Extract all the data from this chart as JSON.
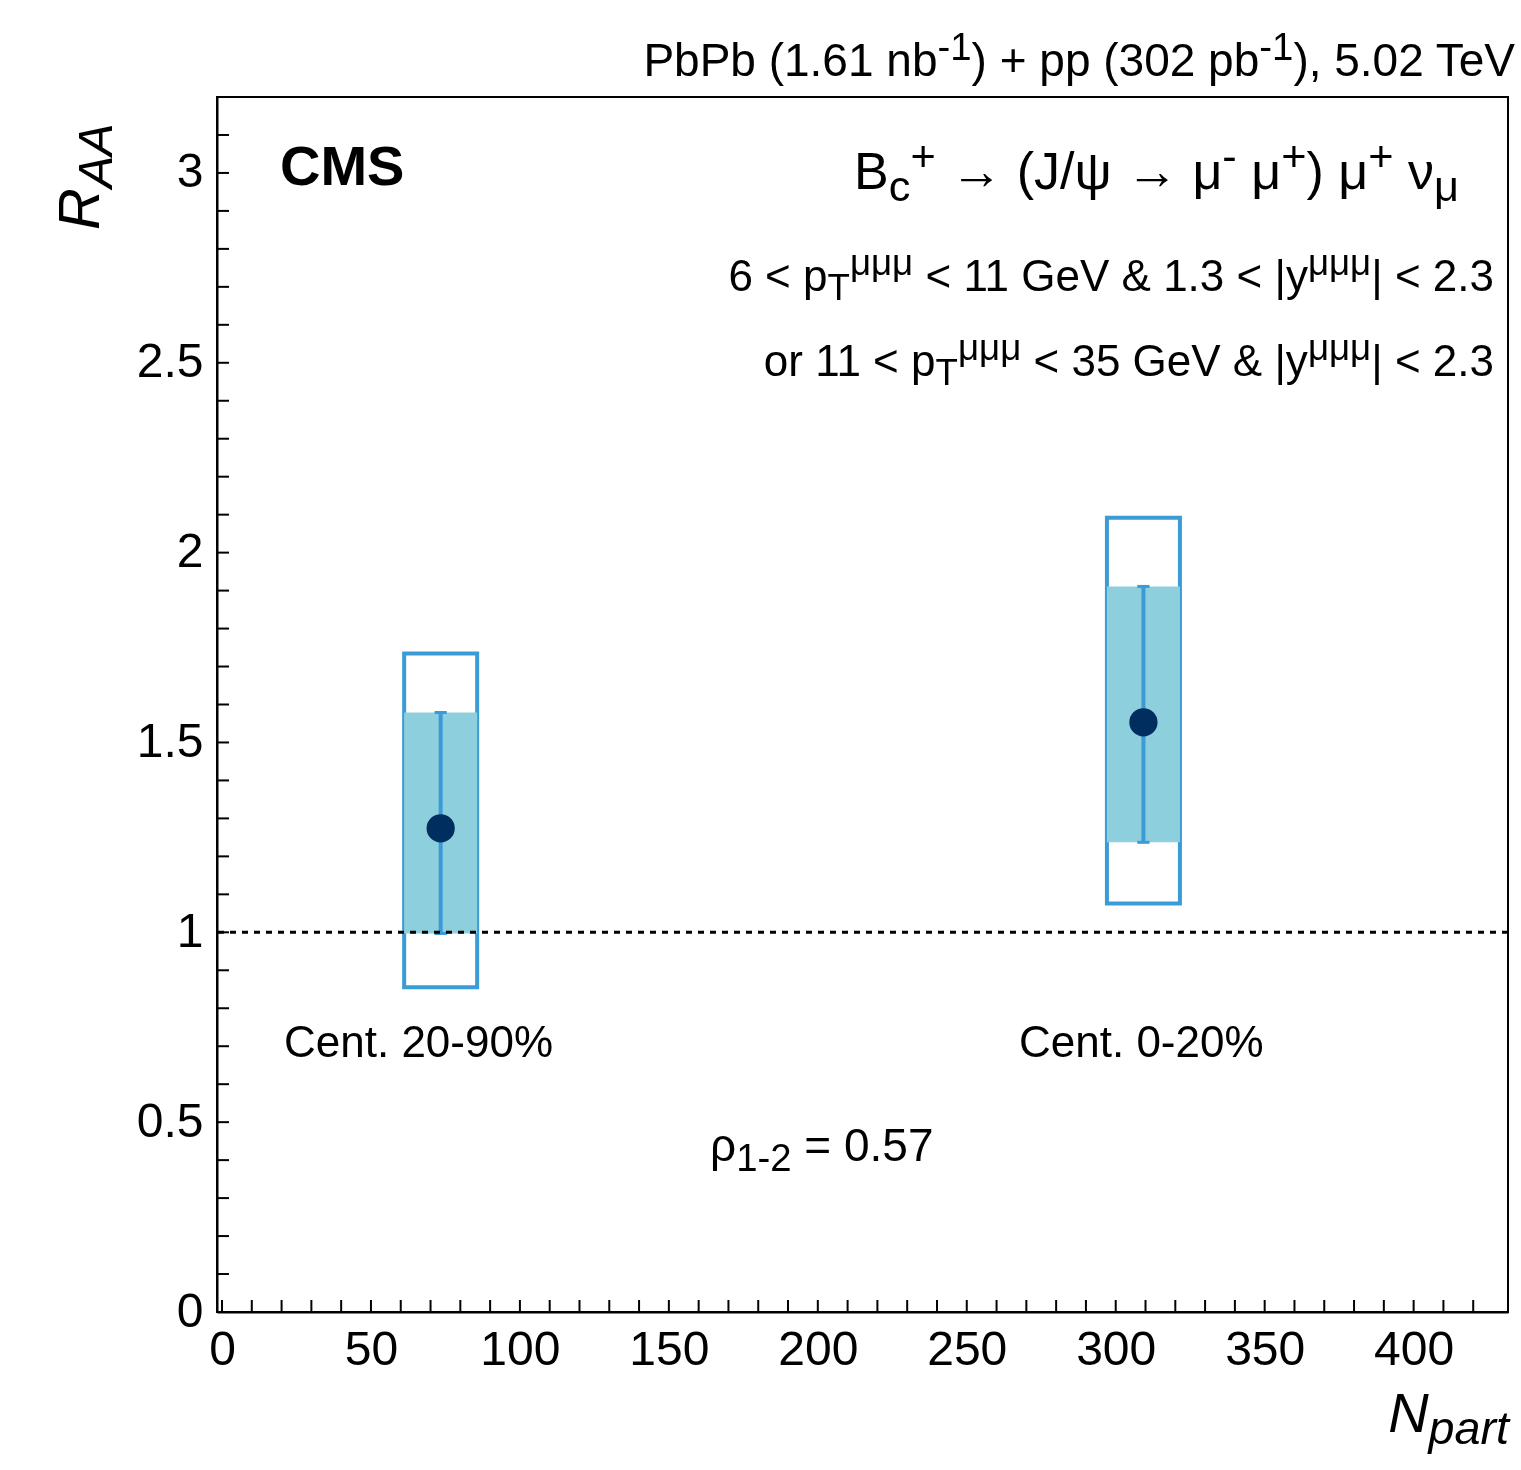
{
  "chart_data": {
    "type": "scatter",
    "title": "PbPb (1.61 nb$^{-1}$) + pp (302 pb$^{-1}$), 5.02 TeV",
    "xlabel": "N$_{part}$",
    "ylabel": "R$_{AA}$",
    "annotations": [
      "CMS",
      "B$_{c}$$^{+}$ → (J/ψ → μ$^{-}$ μ$^{+}$) μ$^{+}$ ν$_{μ}$",
      "6 < p$_{T}$$^{μμμ}$ < 11 GeV & 1.3 < |y$^{μμμ}$| < 2.3",
      "or 11 < p$_{T}$$^{μμμ}$ < 35 GeV & |y$^{μμμ}$| < 2.3",
      "ρ$_{1-2}$ = 0.57",
      "Cent. 20-90%",
      "Cent. 0-20%"
    ],
    "xlim": [
      0,
      430
    ],
    "ylim": [
      0,
      3.2
    ],
    "xticks": [
      0,
      {
        "value": 10,
        "label": null
      },
      {
        "value": 20,
        "label": null
      },
      {
        "value": 30,
        "label": null
      },
      {
        "value": 40,
        "label": null
      },
      50,
      {
        "value": 60,
        "label": null
      },
      {
        "value": 70,
        "label": null
      },
      {
        "value": 80,
        "label": null
      },
      {
        "value": 90,
        "label": null
      },
      100,
      {
        "value": 110,
        "label": null
      },
      {
        "value": 120,
        "label": null
      },
      {
        "value": 130,
        "label": null
      },
      {
        "value": 140,
        "label": null
      },
      150,
      {
        "value": 160,
        "label": null
      },
      {
        "value": 170,
        "label": null
      },
      {
        "value": 180,
        "label": null
      },
      {
        "value": 190,
        "label": null
      },
      200,
      {
        "value": 210,
        "label": null
      },
      {
        "value": 220,
        "label": null
      },
      {
        "value": 230,
        "label": null
      },
      {
        "value": 240,
        "label": null
      },
      250,
      {
        "value": 260,
        "label": null
      },
      {
        "value": 270,
        "label": null
      },
      {
        "value": 280,
        "label": null
      },
      {
        "value": 290,
        "label": null
      },
      300,
      {
        "value": 310,
        "label": null
      },
      {
        "value": 320,
        "label": null
      },
      {
        "value": 330,
        "label": null
      },
      {
        "value": 340,
        "label": null
      },
      350,
      {
        "value": 360,
        "label": null
      },
      {
        "value": 370,
        "label": null
      },
      {
        "value": 380,
        "label": null
      },
      {
        "value": 390,
        "label": null
      },
      400,
      {
        "value": 410,
        "label": null
      },
      {
        "value": 420,
        "label": null
      }
    ],
    "yticks": [
      0,
      {
        "value": 0.1,
        "label": null
      },
      {
        "value": 0.2,
        "label": null
      },
      {
        "value": 0.3,
        "label": null
      },
      {
        "value": 0.4,
        "label": null
      },
      0.5,
      {
        "value": 0.6,
        "label": null
      },
      {
        "value": 0.7,
        "label": null
      },
      {
        "value": 0.8,
        "label": null
      },
      {
        "value": 0.9,
        "label": null
      },
      1,
      {
        "value": 1.1,
        "label": null
      },
      {
        "value": 1.2,
        "label": null
      },
      {
        "value": 1.3,
        "label": null
      },
      {
        "value": 1.4,
        "label": null
      },
      1.5,
      {
        "value": 1.6,
        "label": null
      },
      {
        "value": 1.7,
        "label": null
      },
      {
        "value": 1.8,
        "label": null
      },
      {
        "value": 1.9,
        "label": null
      },
      2,
      {
        "value": 2.1,
        "label": null
      },
      {
        "value": 2.2,
        "label": null
      },
      {
        "value": 2.3,
        "label": null
      },
      {
        "value": 2.4,
        "label": null
      },
      2.5,
      {
        "value": 2.6,
        "label": null
      },
      {
        "value": 2.7,
        "label": null
      },
      {
        "value": 2.8,
        "label": null
      },
      {
        "value": 2.9,
        "label": null
      },
      3,
      {
        "value": 3.1,
        "label": null
      }
    ],
    "ref_lines": [
      {
        "axis": "y",
        "value": 1,
        "line_style": "dashed",
        "color": "#000000"
      }
    ],
    "x": [
      73.4,
      309.3
    ],
    "series": [
      {
        "type": "bar",
        "base": [
          0.855,
          1.076
        ],
        "values": [
          0.879,
          1.016
        ],
        "color": "#3b9bd6"
      },
      {
        "type": "bar",
        "base": [
          0.997,
          1.237
        ],
        "values": [
          0.582,
          0.674
        ],
        "color": "#8ecfde"
      },
      {
        "values": [
          1.274,
          1.553
        ],
        "errors": [
          [
            0.997,
            1.579
          ],
          [
            1.237,
            1.911
          ]
        ],
        "color": "#002f5f",
        "marker": "circle"
      }
    ],
    "grid": false
  }
}
